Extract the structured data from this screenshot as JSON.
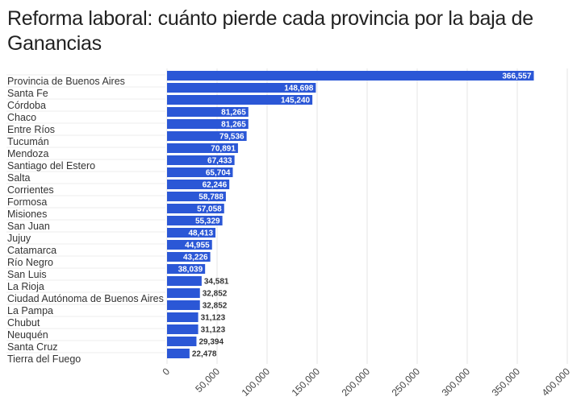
{
  "title": "Reforma laboral: cuánto pierde cada provincia por la baja de Ganancias",
  "colors": {
    "bar": "#2b57d6",
    "grid": "#e6e6e6",
    "text": "#333333"
  },
  "chart_data": {
    "type": "bar",
    "orientation": "horizontal",
    "title": "Reforma laboral: cuánto pierde cada provincia por la baja de Ganancias",
    "categories": [
      "Provincia de Buenos Aires",
      "Santa Fe",
      "Córdoba",
      "Chaco",
      "Entre Ríos",
      "Tucumán",
      "Mendoza",
      "Santiago del Estero",
      "Salta",
      "Corrientes",
      "Formosa",
      "Misiones",
      "San Juan",
      "Jujuy",
      "Catamarca",
      "Río Negro",
      "San Luis",
      "La Rioja",
      "Ciudad Autónoma de Buenos Aires",
      "La Pampa",
      "Chubut",
      "Neuquén",
      "Santa Cruz",
      "Tierra del Fuego"
    ],
    "values": [
      366557,
      148698,
      145240,
      81265,
      81265,
      79536,
      70891,
      67433,
      65704,
      62246,
      58788,
      57058,
      55329,
      48413,
      44955,
      43226,
      38039,
      34581,
      32852,
      32852,
      31123,
      31123,
      29394,
      22478
    ],
    "xlim": [
      0,
      400000
    ],
    "xticks": [
      0,
      50000,
      100000,
      150000,
      200000,
      250000,
      300000,
      350000,
      400000
    ],
    "xtick_labels": [
      "0",
      "50,000",
      "100,000",
      "150,000",
      "200,000",
      "250,000",
      "300,000",
      "350,000",
      "400,000"
    ],
    "grid": true,
    "data_labels": true,
    "legend": "none"
  }
}
